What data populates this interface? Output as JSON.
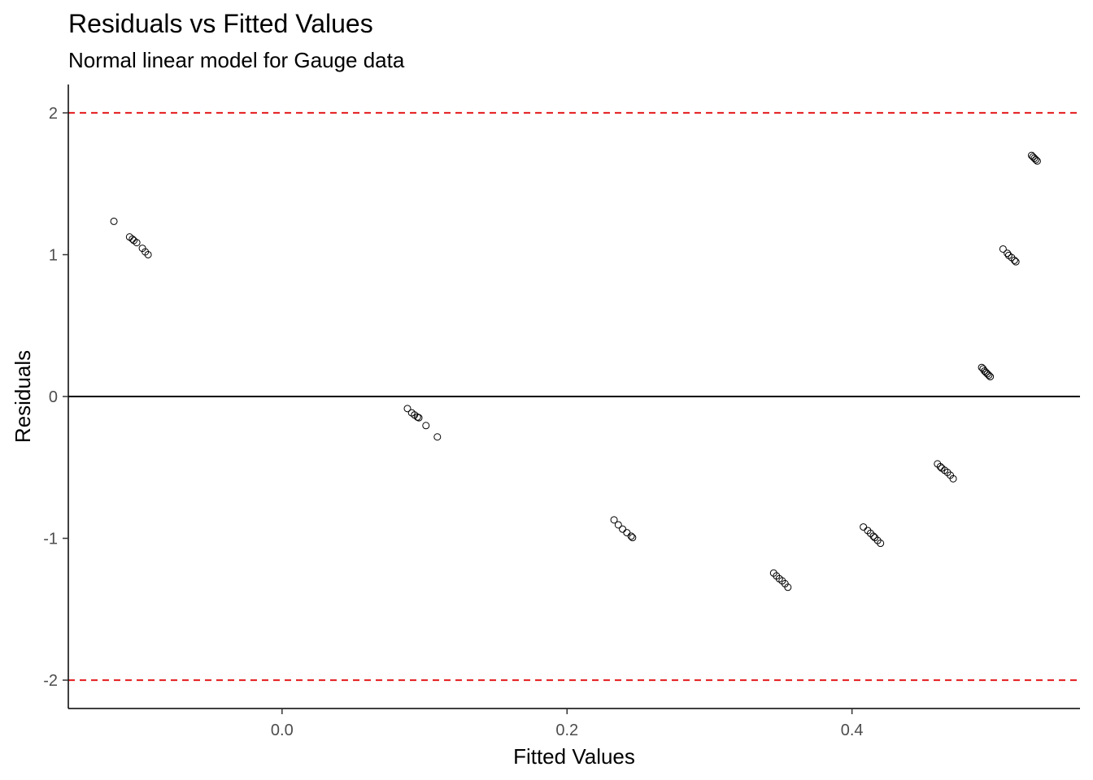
{
  "chart_data": {
    "type": "scatter",
    "title": "Residuals vs Fitted Values",
    "subtitle": "Normal linear model for Gauge data",
    "xlabel": "Fitted Values",
    "ylabel": "Residuals",
    "xlim": [
      -0.15,
      0.56
    ],
    "ylim": [
      -2.2,
      2.2
    ],
    "x_ticks": [
      0.0,
      0.2,
      0.4
    ],
    "x_tick_labels": [
      "0.0",
      "0.2",
      "0.4"
    ],
    "y_ticks": [
      -2,
      -1,
      0,
      1,
      2
    ],
    "y_tick_labels": [
      "-2",
      "-1",
      "0",
      "1",
      "2"
    ],
    "grid": false,
    "reference_lines": [
      {
        "y": 0,
        "style": "solid",
        "color": "#000000"
      },
      {
        "y": 2,
        "style": "dashed",
        "color": "#e41a1c"
      },
      {
        "y": -2,
        "style": "dashed",
        "color": "#e41a1c"
      }
    ],
    "point_style": {
      "shape": "open-circle",
      "color": "#000000"
    },
    "points": [
      {
        "x": -0.118,
        "y": 1.235
      },
      {
        "x": -0.107,
        "y": 1.125
      },
      {
        "x": -0.105,
        "y": 1.11
      },
      {
        "x": -0.104,
        "y": 1.1
      },
      {
        "x": -0.102,
        "y": 1.085
      },
      {
        "x": -0.098,
        "y": 1.045
      },
      {
        "x": -0.096,
        "y": 1.02
      },
      {
        "x": -0.094,
        "y": 1.0
      },
      {
        "x": 0.088,
        "y": -0.085
      },
      {
        "x": 0.091,
        "y": -0.115
      },
      {
        "x": 0.093,
        "y": -0.13
      },
      {
        "x": 0.095,
        "y": -0.145
      },
      {
        "x": 0.096,
        "y": -0.15
      },
      {
        "x": 0.101,
        "y": -0.205
      },
      {
        "x": 0.109,
        "y": -0.285
      },
      {
        "x": 0.233,
        "y": -0.87
      },
      {
        "x": 0.236,
        "y": -0.905
      },
      {
        "x": 0.239,
        "y": -0.935
      },
      {
        "x": 0.242,
        "y": -0.96
      },
      {
        "x": 0.245,
        "y": -0.985
      },
      {
        "x": 0.246,
        "y": -0.995
      },
      {
        "x": 0.345,
        "y": -1.245
      },
      {
        "x": 0.347,
        "y": -1.265
      },
      {
        "x": 0.349,
        "y": -1.285
      },
      {
        "x": 0.351,
        "y": -1.3
      },
      {
        "x": 0.353,
        "y": -1.32
      },
      {
        "x": 0.355,
        "y": -1.345
      },
      {
        "x": 0.408,
        "y": -0.92
      },
      {
        "x": 0.411,
        "y": -0.945
      },
      {
        "x": 0.413,
        "y": -0.965
      },
      {
        "x": 0.415,
        "y": -0.985
      },
      {
        "x": 0.416,
        "y": -0.995
      },
      {
        "x": 0.418,
        "y": -1.015
      },
      {
        "x": 0.42,
        "y": -1.035
      },
      {
        "x": 0.46,
        "y": -0.475
      },
      {
        "x": 0.462,
        "y": -0.495
      },
      {
        "x": 0.463,
        "y": -0.505
      },
      {
        "x": 0.465,
        "y": -0.52
      },
      {
        "x": 0.467,
        "y": -0.535
      },
      {
        "x": 0.469,
        "y": -0.555
      },
      {
        "x": 0.471,
        "y": -0.58
      },
      {
        "x": 0.491,
        "y": 0.205
      },
      {
        "x": 0.492,
        "y": 0.195
      },
      {
        "x": 0.493,
        "y": 0.18
      },
      {
        "x": 0.494,
        "y": 0.17
      },
      {
        "x": 0.495,
        "y": 0.16
      },
      {
        "x": 0.496,
        "y": 0.15
      },
      {
        "x": 0.497,
        "y": 0.14
      },
      {
        "x": 0.506,
        "y": 1.04
      },
      {
        "x": 0.509,
        "y": 1.01
      },
      {
        "x": 0.51,
        "y": 0.995
      },
      {
        "x": 0.512,
        "y": 0.98
      },
      {
        "x": 0.514,
        "y": 0.96
      },
      {
        "x": 0.515,
        "y": 0.95
      },
      {
        "x": 0.526,
        "y": 1.7
      },
      {
        "x": 0.527,
        "y": 1.69
      },
      {
        "x": 0.528,
        "y": 1.68
      },
      {
        "x": 0.529,
        "y": 1.67
      },
      {
        "x": 0.53,
        "y": 1.66
      }
    ]
  }
}
